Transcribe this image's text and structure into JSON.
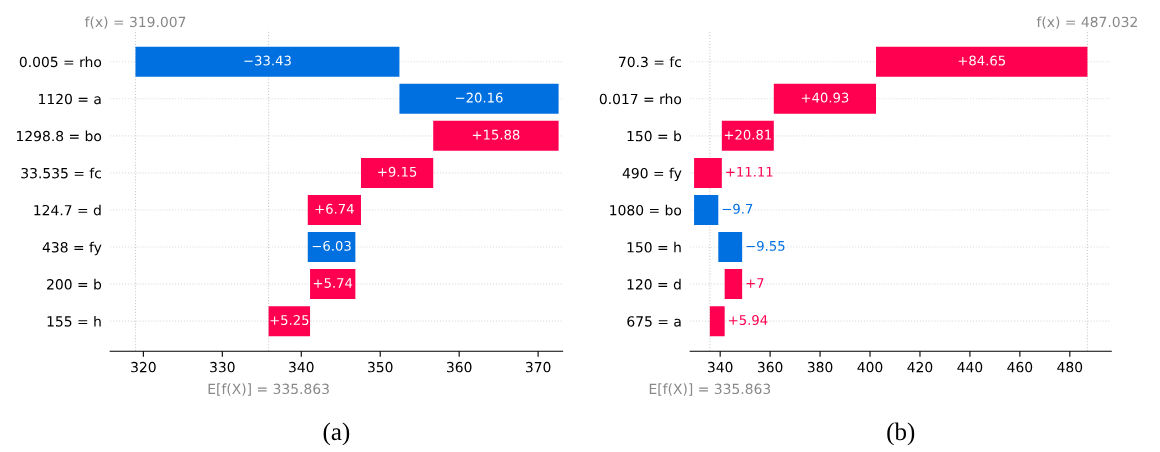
{
  "chart_data": [
    {
      "type": "bar",
      "orientation": "horizontal",
      "categories": [
        "0.005 = rho",
        "1120 = a",
        "1298.8 = bo",
        "33.535 = fc",
        "124.7 = d",
        "438 = fy",
        "200 = b",
        "155 = h"
      ],
      "values": [
        -33.43,
        -20.16,
        15.88,
        9.15,
        6.74,
        -6.03,
        5.74,
        5.25
      ],
      "base": [
        352.433,
        372.593,
        356.713,
        347.563,
        340.823,
        346.853,
        341.113,
        335.863
      ],
      "colors": [
        "#0070e0",
        "#0070e0",
        "#ff0051",
        "#ff0051",
        "#ff0051",
        "#0070e0",
        "#ff0051",
        "#ff0051"
      ],
      "value_labels": [
        "−33.43",
        "−20.16",
        "+15.88",
        "+9.15",
        "+6.74",
        "−6.03",
        "+5.74",
        "+5.25"
      ],
      "xlim": [
        315.8,
        373.1
      ],
      "xticks": [
        320,
        330,
        340,
        350,
        360,
        370
      ],
      "grid": "y",
      "ref_lines": [
        {
          "axis": "x",
          "value": 319.007,
          "label": "f(x) = 319.007",
          "line_style": "dotted",
          "color": "#cccccc"
        },
        {
          "axis": "x",
          "value": 335.863,
          "label": "E[f(X)] = 335.863",
          "line_style": "dotted",
          "color": "#cccccc"
        }
      ],
      "annotations": [
        "(a)"
      ]
    },
    {
      "type": "bar",
      "orientation": "horizontal",
      "categories": [
        "70.3 = fc",
        "0.017 = rho",
        "150 = b",
        "490 = fy",
        "1080 = bo",
        "150 = h",
        "120 = d",
        "675 = a"
      ],
      "values": [
        84.65,
        40.93,
        20.81,
        11.11,
        -9.7,
        -9.55,
        7,
        5.94
      ],
      "base": [
        402.403,
        361.473,
        340.663,
        329.553,
        339.253,
        348.803,
        341.803,
        335.863
      ],
      "colors": [
        "#ff0051",
        "#ff0051",
        "#ff0051",
        "#ff0051",
        "#0070e0",
        "#0070e0",
        "#ff0051",
        "#ff0051"
      ],
      "value_labels": [
        "+84.65",
        "+40.93",
        "+20.81",
        "+11.11",
        "−9.7",
        "−9.55",
        "+7",
        "+5.94"
      ],
      "xlim": [
        328,
        496.6
      ],
      "xticks": [
        340,
        360,
        380,
        400,
        420,
        440,
        460,
        480
      ],
      "grid": "y",
      "ref_lines": [
        {
          "axis": "x",
          "value": 487.032,
          "label": "f(x) = 487.032",
          "line_style": "dotted",
          "color": "#cccccc"
        },
        {
          "axis": "x",
          "value": 335.863,
          "label": "E[f(X)] = 335.863",
          "line_style": "dotted",
          "color": "#cccccc"
        }
      ],
      "annotations": [
        "(b)"
      ]
    }
  ]
}
